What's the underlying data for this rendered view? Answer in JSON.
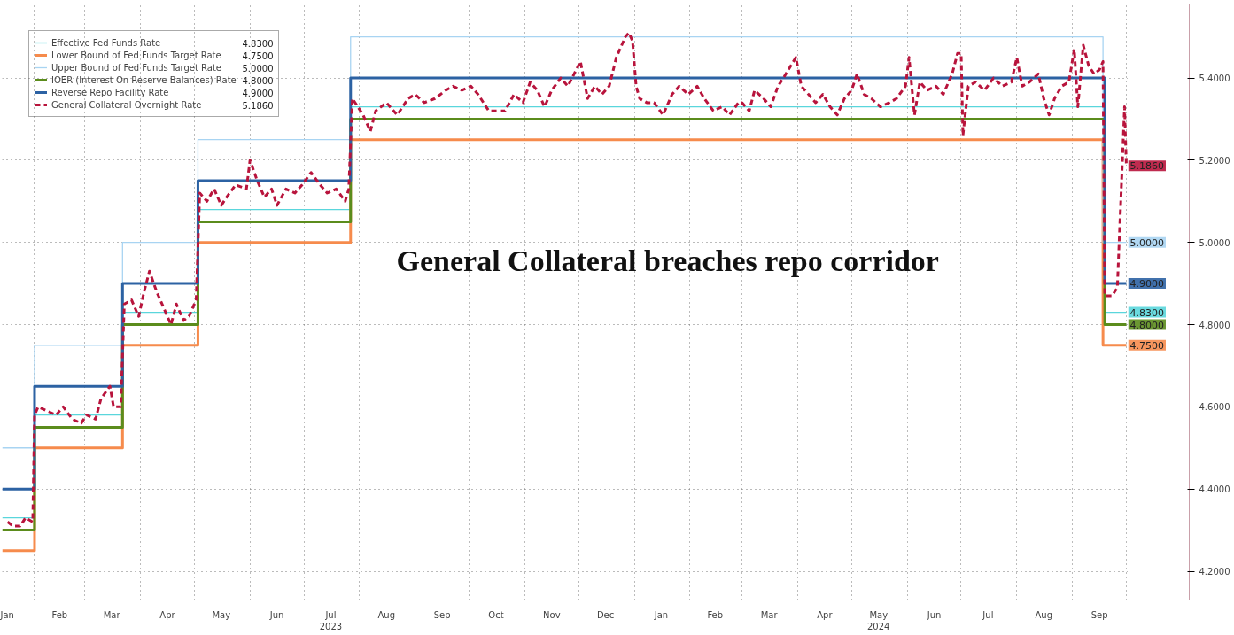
{
  "chart_data": {
    "type": "line",
    "annotations": [
      "General Collateral breaches repo corridor"
    ],
    "xlim": [
      "2023-01-14",
      "2024-10-02"
    ],
    "xticks": [
      {
        "value": "2023-01-16",
        "label": "Jan"
      },
      {
        "value": "2023-02-15",
        "label": "Feb"
      },
      {
        "value": "2023-03-16",
        "label": "Mar"
      },
      {
        "value": "2023-04-16",
        "label": "Apr"
      },
      {
        "value": "2023-05-16",
        "label": "May"
      },
      {
        "value": "2023-06-16",
        "label": "Jun"
      },
      {
        "value": "2023-07-16",
        "label": "Jul\n2023"
      },
      {
        "value": "2023-08-16",
        "label": "Aug"
      },
      {
        "value": "2023-09-16",
        "label": "Sep"
      },
      {
        "value": "2023-10-16",
        "label": "Oct"
      },
      {
        "value": "2023-11-16",
        "label": "Nov"
      },
      {
        "value": "2023-12-16",
        "label": "Dec"
      },
      {
        "value": "2024-01-16",
        "label": "Jan"
      },
      {
        "value": "2024-02-15",
        "label": "Feb"
      },
      {
        "value": "2024-03-16",
        "label": "Mar"
      },
      {
        "value": "2024-04-16",
        "label": "Apr"
      },
      {
        "value": "2024-05-16",
        "label": "May\n2024"
      },
      {
        "value": "2024-06-16",
        "label": "Jun"
      },
      {
        "value": "2024-07-16",
        "label": "Jul"
      },
      {
        "value": "2024-08-16",
        "label": "Aug"
      },
      {
        "value": "2024-09-16",
        "label": "Sep"
      }
    ],
    "ylim": [
      4.13,
      5.58
    ],
    "yticks": [
      {
        "value": 4.2,
        "label": "4.2000"
      },
      {
        "value": 4.4,
        "label": "4.4000"
      },
      {
        "value": 4.6,
        "label": "4.6000"
      },
      {
        "value": 4.8,
        "label": "4.8000"
      },
      {
        "value": 5.0,
        "label": "5.0000"
      },
      {
        "value": 5.2,
        "label": "5.2000"
      },
      {
        "value": 5.4,
        "label": "5.4000"
      }
    ],
    "grid": true,
    "legend": "top left",
    "series": [
      {
        "name": "Effective Fed Funds Rate",
        "type": "step",
        "color": "#5ad6dc",
        "x": [
          "2023-01-14",
          "2023-02-01",
          "2023-03-22",
          "2023-05-03",
          "2023-07-27",
          "2024-09-19",
          "2024-10-01"
        ],
        "values": [
          4.33,
          4.58,
          4.83,
          5.08,
          5.33,
          4.83,
          4.83
        ],
        "value_labels": [
          null,
          null,
          null,
          null,
          null,
          null,
          "4.8300"
        ]
      },
      {
        "name": "Lower Bound of Fed Funds Target Rate",
        "type": "step",
        "color": "#f68b4c",
        "x": [
          "2023-01-14",
          "2023-02-01",
          "2023-03-22",
          "2023-05-03",
          "2023-07-27",
          "2024-09-18",
          "2024-10-01"
        ],
        "values": [
          4.25,
          4.5,
          4.75,
          5.0,
          5.25,
          4.75,
          4.75
        ],
        "value_labels": [
          null,
          null,
          null,
          null,
          null,
          null,
          "4.7500"
        ]
      },
      {
        "name": "Upper Bound of Fed Funds Target Rate",
        "type": "step",
        "color": "#a8d4f2",
        "x": [
          "2023-01-14",
          "2023-02-01",
          "2023-03-22",
          "2023-05-03",
          "2023-07-27",
          "2024-09-18",
          "2024-10-01"
        ],
        "values": [
          4.5,
          4.75,
          5.0,
          5.25,
          5.5,
          5.0,
          5.0
        ],
        "value_labels": [
          null,
          null,
          null,
          null,
          null,
          null,
          "5.0000"
        ]
      },
      {
        "name": "IOER (Interest On Reserve Balances) Rate",
        "type": "step",
        "color": "#5b8c1c",
        "x": [
          "2023-01-14",
          "2023-02-01",
          "2023-03-22",
          "2023-05-03",
          "2023-07-27",
          "2024-09-19",
          "2024-10-01"
        ],
        "values": [
          4.3,
          4.55,
          4.8,
          5.05,
          5.3,
          4.8,
          4.8
        ],
        "value_labels": [
          null,
          null,
          null,
          null,
          null,
          null,
          "4.8000"
        ]
      },
      {
        "name": "Reverse Repo Facility Rate",
        "type": "step",
        "color": "#2c62a3",
        "x": [
          "2023-01-14",
          "2023-02-01",
          "2023-03-22",
          "2023-05-03",
          "2023-07-27",
          "2024-09-19",
          "2024-10-01"
        ],
        "values": [
          4.4,
          4.65,
          4.9,
          5.15,
          5.4,
          4.9,
          4.9
        ],
        "value_labels": [
          null,
          null,
          null,
          null,
          null,
          null,
          "4.9000"
        ]
      },
      {
        "name": "General Collateral Overnight Rate",
        "type": "line",
        "line_style": "dashed",
        "color": "#b8143c",
        "x": [
          "2023-01-17",
          "2023-01-20",
          "2023-01-24",
          "2023-01-27",
          "2023-01-31",
          "2023-02-01",
          "2023-02-03",
          "2023-02-08",
          "2023-02-13",
          "2023-02-17",
          "2023-02-22",
          "2023-02-27",
          "2023-03-02",
          "2023-03-07",
          "2023-03-10",
          "2023-03-15",
          "2023-03-17",
          "2023-03-21",
          "2023-03-23",
          "2023-03-27",
          "2023-03-31",
          "2023-04-03",
          "2023-04-06",
          "2023-04-10",
          "2023-04-14",
          "2023-04-18",
          "2023-04-21",
          "2023-04-25",
          "2023-04-28",
          "2023-05-02",
          "2023-05-04",
          "2023-05-08",
          "2023-05-12",
          "2023-05-16",
          "2023-05-19",
          "2023-05-24",
          "2023-05-30",
          "2023-06-01",
          "2023-06-05",
          "2023-06-09",
          "2023-06-13",
          "2023-06-16",
          "2023-06-21",
          "2023-06-26",
          "2023-06-30",
          "2023-07-05",
          "2023-07-10",
          "2023-07-14",
          "2023-07-19",
          "2023-07-24",
          "2023-07-26",
          "2023-07-28",
          "2023-08-03",
          "2023-08-07",
          "2023-08-10",
          "2023-08-16",
          "2023-08-22",
          "2023-08-28",
          "2023-09-01",
          "2023-09-06",
          "2023-09-12",
          "2023-09-18",
          "2023-09-22",
          "2023-09-27",
          "2023-10-02",
          "2023-10-06",
          "2023-10-12",
          "2023-10-21",
          "2023-10-26",
          "2023-10-31",
          "2023-11-04",
          "2023-11-08",
          "2023-11-12",
          "2023-11-16",
          "2023-11-21",
          "2023-11-25",
          "2023-12-02",
          "2023-12-06",
          "2023-12-10",
          "2023-12-14",
          "2023-12-18",
          "2023-12-22",
          "2023-12-27",
          "2023-12-29",
          "2023-12-31",
          "2024-01-02",
          "2024-01-04",
          "2024-01-08",
          "2024-01-12",
          "2024-01-17",
          "2024-01-22",
          "2024-01-26",
          "2024-01-31",
          "2024-02-05",
          "2024-02-09",
          "2024-02-14",
          "2024-02-19",
          "2024-02-23",
          "2024-02-28",
          "2024-03-01",
          "2024-03-05",
          "2024-03-08",
          "2024-03-13",
          "2024-03-17",
          "2024-03-21",
          "2024-03-24",
          "2024-03-31",
          "2024-04-03",
          "2024-04-07",
          "2024-04-11",
          "2024-04-15",
          "2024-04-19",
          "2024-04-23",
          "2024-04-27",
          "2024-05-01",
          "2024-05-04",
          "2024-05-08",
          "2024-05-12",
          "2024-05-17",
          "2024-05-22",
          "2024-05-26",
          "2024-05-31",
          "2024-06-02",
          "2024-06-05",
          "2024-06-08",
          "2024-06-12",
          "2024-06-17",
          "2024-06-21",
          "2024-06-26",
          "2024-06-29",
          "2024-07-01",
          "2024-07-02",
          "2024-07-05",
          "2024-07-09",
          "2024-07-14",
          "2024-07-19",
          "2024-07-24",
          "2024-07-29",
          "2024-08-01",
          "2024-08-04",
          "2024-08-08",
          "2024-08-13",
          "2024-08-16",
          "2024-08-19",
          "2024-08-22",
          "2024-08-26",
          "2024-08-30",
          "2024-09-02",
          "2024-09-04",
          "2024-09-07",
          "2024-09-10",
          "2024-09-13",
          "2024-09-16",
          "2024-09-18",
          "2024-09-19",
          "2024-09-23",
          "2024-09-26",
          "2024-09-30",
          "2024-10-01"
        ],
        "values": [
          4.32,
          4.31,
          4.31,
          4.33,
          4.32,
          4.58,
          4.6,
          4.59,
          4.58,
          4.6,
          4.57,
          4.56,
          4.58,
          4.57,
          4.62,
          4.65,
          4.6,
          4.6,
          4.85,
          4.86,
          4.82,
          4.88,
          4.93,
          4.88,
          4.84,
          4.8,
          4.85,
          4.81,
          4.82,
          4.86,
          5.12,
          5.1,
          5.13,
          5.09,
          5.11,
          5.14,
          5.13,
          5.2,
          5.15,
          5.11,
          5.13,
          5.09,
          5.13,
          5.12,
          5.14,
          5.17,
          5.14,
          5.12,
          5.13,
          5.1,
          5.13,
          5.35,
          5.31,
          5.27,
          5.32,
          5.34,
          5.31,
          5.35,
          5.36,
          5.34,
          5.35,
          5.37,
          5.38,
          5.37,
          5.38,
          5.36,
          5.32,
          5.32,
          5.36,
          5.34,
          5.39,
          5.37,
          5.33,
          5.37,
          5.4,
          5.38,
          5.44,
          5.35,
          5.38,
          5.36,
          5.38,
          5.45,
          5.5,
          5.51,
          5.49,
          5.38,
          5.35,
          5.34,
          5.34,
          5.31,
          5.36,
          5.38,
          5.36,
          5.38,
          5.35,
          5.32,
          5.33,
          5.31,
          5.34,
          5.34,
          5.32,
          5.37,
          5.35,
          5.33,
          5.38,
          5.4,
          5.45,
          5.38,
          5.36,
          5.34,
          5.36,
          5.33,
          5.31,
          5.35,
          5.37,
          5.41,
          5.36,
          5.35,
          5.33,
          5.34,
          5.35,
          5.38,
          5.45,
          5.31,
          5.39,
          5.37,
          5.38,
          5.36,
          5.41,
          5.46,
          5.46,
          5.26,
          5.38,
          5.39,
          5.37,
          5.4,
          5.38,
          5.39,
          5.45,
          5.38,
          5.39,
          5.41,
          5.35,
          5.31,
          5.35,
          5.38,
          5.39,
          5.47,
          5.33,
          5.48,
          5.43,
          5.41,
          5.42,
          5.44,
          4.87,
          4.87,
          4.89,
          5.33,
          5.186
        ],
        "value_labels": [
          null,
          null,
          null,
          null,
          null,
          null,
          null,
          null,
          null,
          null,
          null,
          null,
          null,
          null,
          null,
          null,
          null,
          null,
          null,
          null,
          null,
          null,
          null,
          null,
          null,
          null,
          null,
          null,
          null,
          null,
          null,
          null,
          null,
          null,
          null,
          null,
          null,
          null,
          null,
          null,
          null,
          null,
          null,
          null,
          null,
          null,
          null,
          null,
          null,
          null,
          null,
          null,
          null,
          null,
          null,
          null,
          null,
          null,
          null,
          null,
          null,
          null,
          null,
          null,
          null,
          null,
          null,
          null,
          null,
          null,
          null,
          null,
          null,
          null,
          null,
          null,
          null,
          null,
          null,
          null,
          null,
          null,
          null,
          null,
          null,
          null,
          null,
          null,
          null,
          null,
          null,
          null,
          null,
          null,
          null,
          null,
          null,
          null,
          null,
          null,
          null,
          null,
          null,
          null,
          null,
          null,
          null,
          null,
          null,
          null,
          null,
          null,
          null,
          null,
          null,
          null,
          null,
          null,
          null,
          null,
          null,
          null,
          null,
          null,
          null,
          null,
          null,
          null,
          null,
          null,
          null,
          null,
          null,
          null,
          null,
          null,
          null,
          null,
          null,
          null,
          null,
          null,
          null,
          null,
          null,
          null,
          null,
          null,
          null,
          null,
          null,
          null,
          null,
          null,
          null,
          null,
          null,
          null,
          "5.1860"
        ]
      }
    ]
  }
}
